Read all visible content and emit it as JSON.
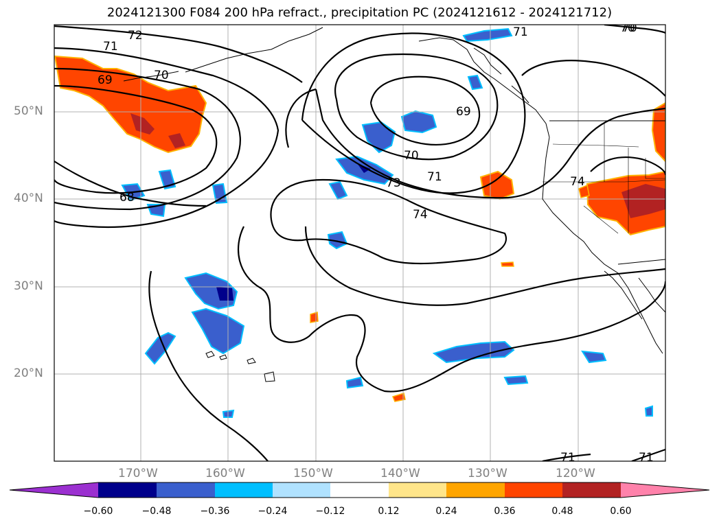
{
  "title": "2024121300 F084 200 hPa refract., precipitation PC (2024121612 - 2024121712)",
  "map": {
    "lat_labels": [
      "50°N",
      "40°N",
      "30°N",
      "20°N"
    ],
    "lon_labels": [
      "170°W",
      "160°W",
      "150°W",
      "140°W",
      "130°W",
      "120°W"
    ],
    "contour_labels": [
      "72",
      "71",
      "70",
      "69",
      "68",
      "70",
      "69",
      "70",
      "71",
      "73",
      "74",
      "74",
      "71",
      "71",
      "70",
      "71"
    ]
  },
  "colorbar": {
    "ticks": [
      "−0.60",
      "−0.48",
      "−0.36",
      "−0.24",
      "−0.12",
      "0.12",
      "0.24",
      "0.36",
      "0.48",
      "0.60"
    ],
    "colors": [
      "#9b30d0",
      "#00008b",
      "#3a5fcd",
      "#00bfff",
      "#b0e2ff",
      "#ffffff",
      "#ffe58a",
      "#ffa500",
      "#ff4500",
      "#b22222",
      "#ff82ab"
    ]
  }
}
